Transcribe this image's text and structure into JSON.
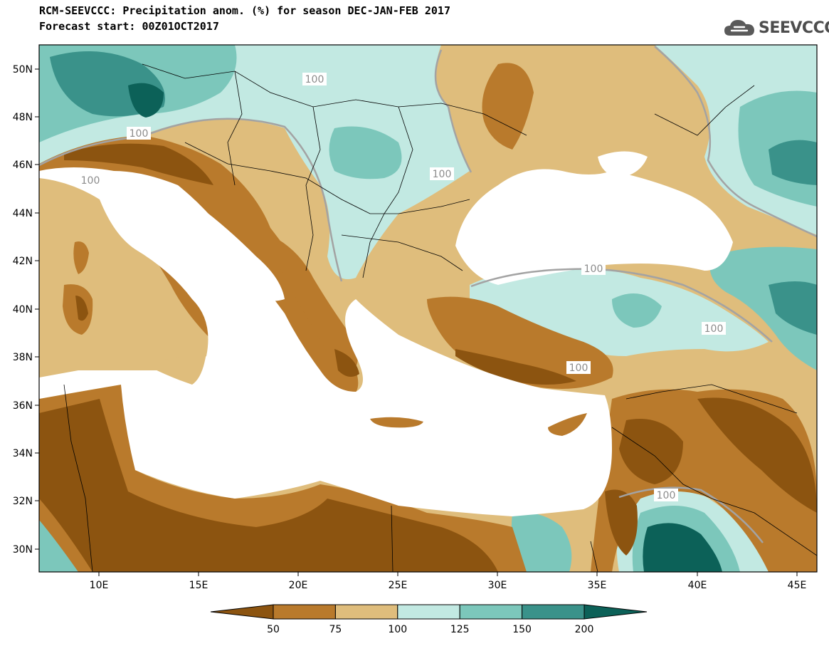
{
  "header": {
    "title_line1": "RCM-SEEVCCC: Precipitation anom. (%) for season DEC-JAN-FEB 2017",
    "title_line2": "Forecast start: 00Z01OCT2017"
  },
  "logo": {
    "text": "SEEVCCC",
    "icon": "cloud-icon"
  },
  "map": {
    "lon_range": [
      7,
      46
    ],
    "lat_range": [
      29,
      51
    ],
    "lon_ticks": [
      "10E",
      "15E",
      "20E",
      "25E",
      "30E",
      "35E",
      "40E",
      "45E"
    ],
    "lat_ticks": [
      "30N",
      "32N",
      "34N",
      "36N",
      "38N",
      "40N",
      "42N",
      "44N",
      "46N",
      "48N",
      "50N"
    ],
    "contour_labels": [
      "100",
      "100",
      "100",
      "100",
      "100",
      "100",
      "100",
      "100"
    ]
  },
  "colorbar": {
    "tick_labels": [
      "50",
      "75",
      "100",
      "125",
      "150",
      "200"
    ],
    "colors": [
      "#8c5410",
      "#b97a2c",
      "#dfbd7c",
      "#c2e9e2",
      "#7cc7bb",
      "#3a928a",
      "#0c6158"
    ]
  },
  "colors": {
    "sea": "#ffffff",
    "dry_strong": "#8c5410",
    "dry": "#b97a2c",
    "dry_weak": "#dfbd7c",
    "wet_weak": "#c2e9e2",
    "wet": "#7cc7bb",
    "wet_strong": "#3a928a",
    "wet_extreme": "#0c6158",
    "contour_100": "#a3a3a3"
  }
}
